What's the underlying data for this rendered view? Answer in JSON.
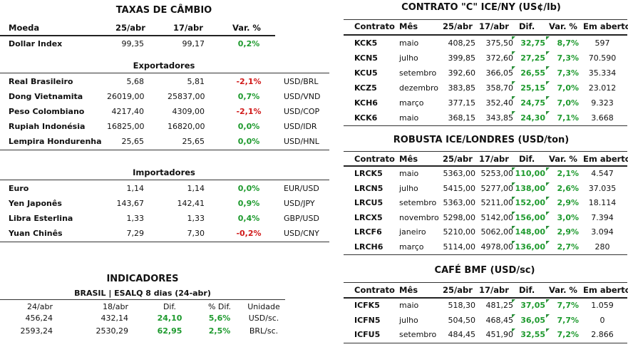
{
  "left": {
    "title": "TAXAS DE CÂMBIO",
    "header": [
      "Moeda",
      "25/abr",
      "17/abr",
      "Var. %"
    ],
    "dollar_index": {
      "name": "Dollar Index",
      "v1": "99,35",
      "v2": "99,17",
      "var": "0,2%"
    },
    "exporters_title": "Exportadores",
    "exporters": [
      {
        "name": "Real Brasileiro",
        "v1": "5,68",
        "v2": "5,81",
        "var": "-2,1%",
        "pair": "USD/BRL",
        "neg": true
      },
      {
        "name": "Dong Vietnamita",
        "v1": "26019,00",
        "v2": "25837,00",
        "var": "0,7%",
        "pair": "USD/VND",
        "neg": false
      },
      {
        "name": "Peso Colombiano",
        "v1": "4217,40",
        "v2": "4309,00",
        "var": "-2,1%",
        "pair": "USD/COP",
        "neg": true
      },
      {
        "name": "Rupiah Indonésia",
        "v1": "16825,00",
        "v2": "16820,00",
        "var": "0,0%",
        "pair": "USD/IDR",
        "neg": false
      },
      {
        "name": "Lempira Hondurenha",
        "v1": "25,65",
        "v2": "25,65",
        "var": "0,0%",
        "pair": "USD/HNL",
        "neg": false
      }
    ],
    "importers_title": "Importadores",
    "importers": [
      {
        "name": "Euro",
        "v1": "1,14",
        "v2": "1,14",
        "var": "0,0%",
        "pair": "EUR/USD",
        "neg": false
      },
      {
        "name": "Yen Japonês",
        "v1": "143,67",
        "v2": "142,41",
        "var": "0,9%",
        "pair": "USD/JPY",
        "neg": false
      },
      {
        "name": "Libra Esterlina",
        "v1": "1,33",
        "v2": "1,33",
        "var": "0,4%",
        "pair": "GBP/USD",
        "neg": false
      },
      {
        "name": "Yuan Chinês",
        "v1": "7,29",
        "v2": "7,30",
        "var": "-0,2%",
        "pair": "USD/CNY",
        "neg": true
      }
    ],
    "indicators_title": "INDICADORES",
    "indicators_sub": "BRASIL | ESALQ 8 dias (24-abr)",
    "indicators_header": [
      "24/abr",
      "18/abr",
      "Dif.",
      "% Dif.",
      "Unidade"
    ],
    "indicators": [
      {
        "v1": "456,24",
        "v2": "432,14",
        "dif": "24,10",
        "pct": "5,6%",
        "unit": "USD/sc."
      },
      {
        "v1": "2593,24",
        "v2": "2530,29",
        "dif": "62,95",
        "pct": "2,5%",
        "unit": "BRL/sc."
      }
    ]
  },
  "right": {
    "header": [
      "Contrato",
      "Mês",
      "25/abr",
      "17/abr",
      "Dif.",
      "Var. %",
      "Em aberto"
    ],
    "ny": {
      "title": "CONTRATO \"C\" ICE/NY (US¢/lb)",
      "rows": [
        {
          "c": "KCK5",
          "m": "maio",
          "v1": "408,25",
          "v2": "375,50",
          "dif": "32,75",
          "var": "8,7%",
          "oi": "597"
        },
        {
          "c": "KCN5",
          "m": "julho",
          "v1": "399,85",
          "v2": "372,60",
          "dif": "27,25",
          "var": "7,3%",
          "oi": "70.590"
        },
        {
          "c": "KCU5",
          "m": "setembro",
          "v1": "392,60",
          "v2": "366,05",
          "dif": "26,55",
          "var": "7,3%",
          "oi": "35.334"
        },
        {
          "c": "KCZ5",
          "m": "dezembro",
          "v1": "383,85",
          "v2": "358,70",
          "dif": "25,15",
          "var": "7,0%",
          "oi": "23.012"
        },
        {
          "c": "KCH6",
          "m": "março",
          "v1": "377,15",
          "v2": "352,40",
          "dif": "24,75",
          "var": "7,0%",
          "oi": "9.323"
        },
        {
          "c": "KCK6",
          "m": "maio",
          "v1": "368,15",
          "v2": "343,85",
          "dif": "24,30",
          "var": "7,1%",
          "oi": "3.668"
        }
      ]
    },
    "london": {
      "title": "ROBUSTA ICE/LONDRES (USD/ton)",
      "rows": [
        {
          "c": "LRCK5",
          "m": "maio",
          "v1": "5363,00",
          "v2": "5253,00",
          "dif": "110,00",
          "var": "2,1%",
          "oi": "4.547"
        },
        {
          "c": "LRCN5",
          "m": "julho",
          "v1": "5415,00",
          "v2": "5277,00",
          "dif": "138,00",
          "var": "2,6%",
          "oi": "37.035"
        },
        {
          "c": "LRCU5",
          "m": "setembro",
          "v1": "5363,00",
          "v2": "5211,00",
          "dif": "152,00",
          "var": "2,9%",
          "oi": "18.114"
        },
        {
          "c": "LRCX5",
          "m": "novembro",
          "v1": "5298,00",
          "v2": "5142,00",
          "dif": "156,00",
          "var": "3,0%",
          "oi": "7.394"
        },
        {
          "c": "LRCF6",
          "m": "janeiro",
          "v1": "5210,00",
          "v2": "5062,00",
          "dif": "148,00",
          "var": "2,9%",
          "oi": "3.094"
        },
        {
          "c": "LRCH6",
          "m": "março",
          "v1": "5114,00",
          "v2": "4978,00",
          "dif": "136,00",
          "var": "2,7%",
          "oi": "280"
        }
      ]
    },
    "bmf": {
      "title": "CAFÉ BMF (USD/sc)",
      "rows": [
        {
          "c": "ICFK5",
          "m": "maio",
          "v1": "518,30",
          "v2": "481,25",
          "dif": "37,05",
          "var": "7,7%",
          "oi": "1.059"
        },
        {
          "c": "ICFN5",
          "m": "julho",
          "v1": "504,50",
          "v2": "468,45",
          "dif": "36,05",
          "var": "7,7%",
          "oi": "0"
        },
        {
          "c": "ICFU5",
          "m": "setembro",
          "v1": "484,45",
          "v2": "451,90",
          "dif": "32,55",
          "var": "7,2%",
          "oi": "2.866"
        }
      ]
    }
  },
  "colors": {
    "positive": "#1e9a2e",
    "negative": "#d11a1a",
    "triangle": "#2a8f3a"
  }
}
